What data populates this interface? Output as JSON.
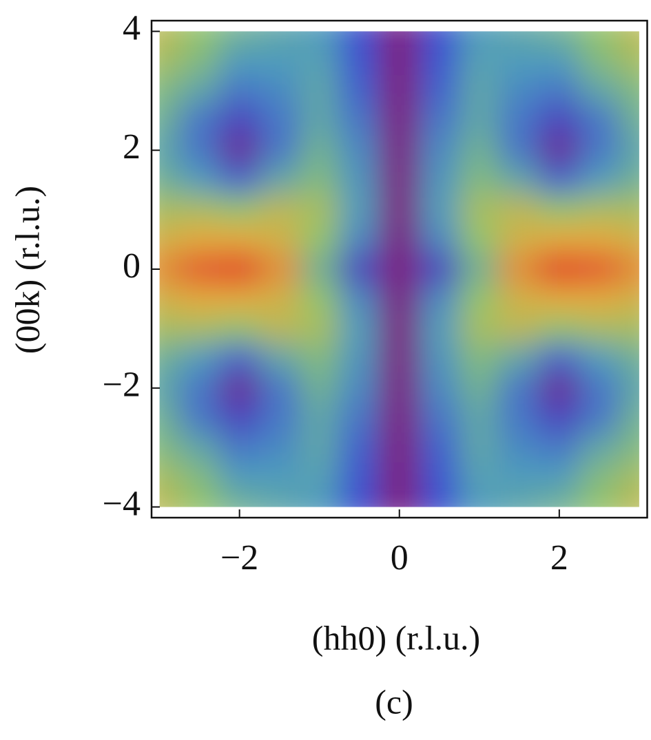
{
  "chart_data": {
    "type": "heatmap",
    "xlabel": "(hh0) (r.l.u.)",
    "ylabel": "(00k) (r.l.u.)",
    "caption": "(c)",
    "xlim": [
      -3.1,
      3.1
    ],
    "ylim": [
      -4.18,
      4.18
    ],
    "xticks": [
      {
        "value": -2,
        "label": "−2"
      },
      0,
      2
    ],
    "yticks": [
      {
        "value": -4,
        "label": "−4"
      },
      {
        "value": -2,
        "label": "−2"
      },
      0,
      2,
      4
    ],
    "colorscale": [
      "#7a1c80",
      "#3c4fd2",
      "#4f9cbc",
      "#93c46a",
      "#e4ab3c",
      "#e0302a"
    ],
    "x": [
      -3,
      -2.5,
      -2,
      -1.5,
      -1,
      -0.5,
      0,
      0.5,
      1,
      1.5,
      2,
      2.5,
      3
    ],
    "y": [
      4,
      3.5,
      3,
      2.5,
      2,
      1.5,
      1,
      0.5,
      0,
      -0.5,
      -1,
      -1.5,
      -2,
      -2.5,
      -3,
      -3.5,
      -4
    ],
    "z": [
      [
        0.7,
        0.6,
        0.5,
        0.45,
        0.4,
        0.2,
        0,
        0.2,
        0.4,
        0.45,
        0.5,
        0.6,
        0.7
      ],
      [
        0.65,
        0.55,
        0.4,
        0.4,
        0.42,
        0.22,
        0,
        0.22,
        0.42,
        0.4,
        0.4,
        0.55,
        0.65
      ],
      [
        0.55,
        0.45,
        0.3,
        0.35,
        0.45,
        0.25,
        0,
        0.25,
        0.45,
        0.35,
        0.3,
        0.45,
        0.55
      ],
      [
        0.5,
        0.3,
        0.15,
        0.3,
        0.45,
        0.3,
        0,
        0.3,
        0.45,
        0.3,
        0.15,
        0.3,
        0.5
      ],
      [
        0.45,
        0.3,
        0.05,
        0.3,
        0.5,
        0.35,
        0,
        0.35,
        0.5,
        0.3,
        0.05,
        0.3,
        0.45
      ],
      [
        0.5,
        0.4,
        0.25,
        0.45,
        0.55,
        0.38,
        0,
        0.38,
        0.55,
        0.45,
        0.25,
        0.4,
        0.5
      ],
      [
        0.65,
        0.65,
        0.6,
        0.7,
        0.65,
        0.4,
        0,
        0.4,
        0.65,
        0.7,
        0.6,
        0.65,
        0.65
      ],
      [
        0.75,
        0.8,
        0.8,
        0.75,
        0.6,
        0.35,
        0,
        0.35,
        0.6,
        0.75,
        0.8,
        0.8,
        0.75
      ],
      [
        0.85,
        0.95,
        1.0,
        0.85,
        0.5,
        0.15,
        0,
        0.15,
        0.5,
        0.85,
        1.0,
        0.95,
        0.85
      ],
      [
        0.75,
        0.8,
        0.8,
        0.75,
        0.6,
        0.35,
        0,
        0.35,
        0.6,
        0.75,
        0.8,
        0.8,
        0.75
      ],
      [
        0.65,
        0.65,
        0.6,
        0.7,
        0.65,
        0.4,
        0,
        0.4,
        0.65,
        0.7,
        0.6,
        0.65,
        0.65
      ],
      [
        0.5,
        0.4,
        0.25,
        0.45,
        0.55,
        0.38,
        0,
        0.38,
        0.55,
        0.45,
        0.25,
        0.4,
        0.5
      ],
      [
        0.45,
        0.3,
        0.05,
        0.3,
        0.5,
        0.35,
        0,
        0.35,
        0.5,
        0.3,
        0.05,
        0.3,
        0.45
      ],
      [
        0.5,
        0.3,
        0.15,
        0.3,
        0.45,
        0.3,
        0,
        0.3,
        0.45,
        0.3,
        0.15,
        0.3,
        0.5
      ],
      [
        0.55,
        0.45,
        0.3,
        0.35,
        0.45,
        0.25,
        0,
        0.25,
        0.45,
        0.35,
        0.3,
        0.45,
        0.55
      ],
      [
        0.65,
        0.55,
        0.4,
        0.4,
        0.42,
        0.22,
        0,
        0.22,
        0.42,
        0.4,
        0.4,
        0.55,
        0.65
      ],
      [
        0.7,
        0.6,
        0.5,
        0.45,
        0.4,
        0.2,
        0,
        0.2,
        0.4,
        0.45,
        0.5,
        0.6,
        0.7
      ]
    ]
  }
}
